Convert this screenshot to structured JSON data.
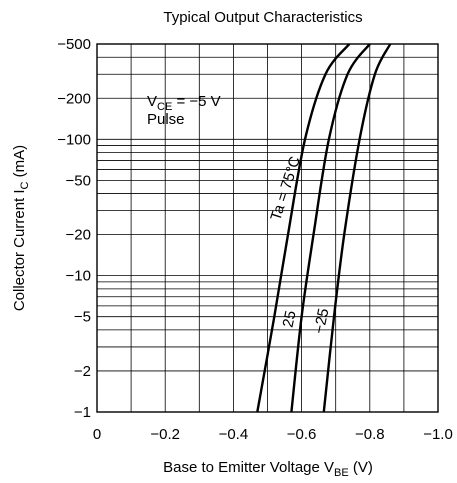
{
  "chart_data": {
    "type": "line",
    "title": "Typical Output Characteristics",
    "xlabel": {
      "main": "Base to Emitter Voltage  V",
      "sub": "BE",
      "unit": "  (V)"
    },
    "ylabel": {
      "main": "Collector Current  I",
      "sub": "C",
      "unit": "  (mA)"
    },
    "xlim": [
      0,
      -1.0
    ],
    "ylim": [
      -1,
      -500
    ],
    "y_scale": "log",
    "grid": true,
    "x_ticks": [
      {
        "value": 0,
        "label": "0"
      },
      {
        "value": -0.2,
        "label": "−0.2"
      },
      {
        "value": -0.4,
        "label": "−0.4"
      },
      {
        "value": -0.6,
        "label": "−0.6"
      },
      {
        "value": -0.8,
        "label": "−0.8"
      },
      {
        "value": -1.0,
        "label": "−1.0"
      }
    ],
    "y_ticks": [
      {
        "value": -1,
        "label": "−1"
      },
      {
        "value": -2,
        "label": "−2"
      },
      {
        "value": -5,
        "label": "−5"
      },
      {
        "value": -10,
        "label": "−10"
      },
      {
        "value": -20,
        "label": "−20"
      },
      {
        "value": -50,
        "label": "−50"
      },
      {
        "value": -100,
        "label": "−100"
      },
      {
        "value": -200,
        "label": "−200"
      },
      {
        "value": -500,
        "label": "−500"
      }
    ],
    "conditions": {
      "vce_main": "V",
      "vce_sub": "CE",
      "vce_value": " = −5 V",
      "pulse": "Pulse"
    },
    "series": [
      {
        "name": "Ta = 75°C",
        "points": [
          [
            -0.47,
            -1
          ],
          [
            -0.52,
            -5
          ],
          [
            -0.56,
            -20
          ],
          [
            -0.61,
            -100
          ],
          [
            -0.67,
            -300
          ],
          [
            -0.74,
            -500
          ]
        ]
      },
      {
        "name": "25",
        "points": [
          [
            -0.57,
            -1
          ],
          [
            -0.6,
            -5
          ],
          [
            -0.635,
            -20
          ],
          [
            -0.68,
            -100
          ],
          [
            -0.735,
            -300
          ],
          [
            -0.8,
            -500
          ]
        ]
      },
      {
        "name": "−25",
        "points": [
          [
            -0.665,
            -1
          ],
          [
            -0.695,
            -5
          ],
          [
            -0.725,
            -20
          ],
          [
            -0.77,
            -100
          ],
          [
            -0.815,
            -300
          ],
          [
            -0.86,
            -500
          ]
        ]
      }
    ]
  }
}
